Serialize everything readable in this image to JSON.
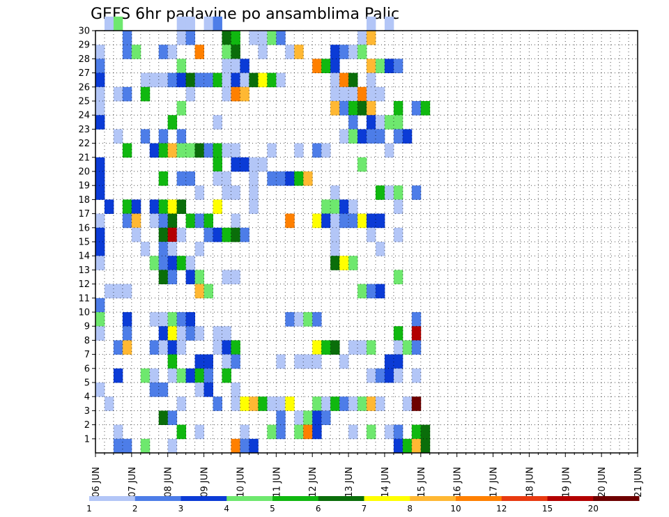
{
  "chart_data": {
    "type": "heatmap",
    "title": "GEFS 6hr padavine po ansamblima Palic",
    "xlabel": "",
    "ylabel": "",
    "x_ticks": [
      "06 JUN",
      "07 JUN",
      "08 JUN",
      "09 JUN",
      "10 JUN",
      "11 JUN",
      "12 JUN",
      "13 JUN",
      "14 JUN",
      "15 JUN",
      "16 JUN",
      "17 JUN",
      "18 JUN",
      "19 JUN",
      "20 JUN",
      "21 JUN"
    ],
    "y_ticks": [
      "1",
      "2",
      "3",
      "4",
      "5",
      "6",
      "7",
      "8",
      "9",
      "10",
      "11",
      "12",
      "13",
      "14",
      "15",
      "16",
      "17",
      "18",
      "19",
      "20",
      "21",
      "22",
      "23",
      "24",
      "25",
      "26",
      "27",
      "28",
      "29",
      "30"
    ],
    "x_range": [
      "06 JUN 00Z",
      "21 JUN 00Z"
    ],
    "time_step_hours": 6,
    "y_range": [
      0,
      30
    ],
    "grid": "dotted",
    "legend": {
      "position": "bottom",
      "labels": [
        "1",
        "2",
        "3",
        "4",
        "5",
        "6",
        "7",
        "8",
        "10",
        "12",
        "15",
        "20"
      ],
      "colors": [
        "#b3c6f7",
        "#4d7de8",
        "#0b3bd6",
        "#6ee86e",
        "#10b810",
        "#0a6e0a",
        "#ffff00",
        "#ffb833",
        "#ff8000",
        "#e83a10",
        "#b30000",
        "#6e0000"
      ]
    },
    "cells": [
      [
        30,
        1,
        0
      ],
      [
        30,
        2,
        3
      ],
      [
        30,
        9,
        0
      ],
      [
        30,
        10,
        0
      ],
      [
        30,
        12,
        0
      ],
      [
        30,
        13,
        1
      ],
      [
        30,
        30,
        0
      ],
      [
        30,
        32,
        0
      ],
      [
        29,
        3,
        1
      ],
      [
        29,
        9,
        0
      ],
      [
        29,
        10,
        1
      ],
      [
        29,
        14,
        5
      ],
      [
        29,
        15,
        4
      ],
      [
        29,
        17,
        0
      ],
      [
        29,
        18,
        0
      ],
      [
        29,
        19,
        3
      ],
      [
        29,
        20,
        1
      ],
      [
        29,
        29,
        0
      ],
      [
        29,
        30,
        7
      ],
      [
        28,
        0,
        0
      ],
      [
        28,
        3,
        1
      ],
      [
        28,
        4,
        3
      ],
      [
        28,
        7,
        1
      ],
      [
        28,
        8,
        0
      ],
      [
        28,
        11,
        8
      ],
      [
        28,
        14,
        3
      ],
      [
        28,
        15,
        5
      ],
      [
        28,
        18,
        0
      ],
      [
        28,
        21,
        0
      ],
      [
        28,
        22,
        7
      ],
      [
        28,
        26,
        2
      ],
      [
        28,
        27,
        1
      ],
      [
        28,
        28,
        0
      ],
      [
        28,
        29,
        3
      ],
      [
        27,
        0,
        1
      ],
      [
        27,
        9,
        3
      ],
      [
        27,
        14,
        0
      ],
      [
        27,
        15,
        0
      ],
      [
        27,
        16,
        2
      ],
      [
        27,
        24,
        8
      ],
      [
        27,
        25,
        4
      ],
      [
        27,
        26,
        2
      ],
      [
        27,
        30,
        7
      ],
      [
        27,
        31,
        3
      ],
      [
        27,
        32,
        2
      ],
      [
        27,
        33,
        1
      ],
      [
        26,
        0,
        2
      ],
      [
        26,
        5,
        0
      ],
      [
        26,
        6,
        0
      ],
      [
        26,
        7,
        0
      ],
      [
        26,
        8,
        1
      ],
      [
        26,
        9,
        2
      ],
      [
        26,
        10,
        5
      ],
      [
        26,
        11,
        1
      ],
      [
        26,
        12,
        1
      ],
      [
        26,
        13,
        4
      ],
      [
        26,
        14,
        0
      ],
      [
        26,
        15,
        2
      ],
      [
        26,
        16,
        0
      ],
      [
        26,
        17,
        5
      ],
      [
        26,
        18,
        6
      ],
      [
        26,
        19,
        4
      ],
      [
        26,
        20,
        0
      ],
      [
        26,
        26,
        0
      ],
      [
        26,
        27,
        8
      ],
      [
        26,
        28,
        5
      ],
      [
        26,
        30,
        0
      ],
      [
        25,
        0,
        0
      ],
      [
        25,
        2,
        0
      ],
      [
        25,
        3,
        1
      ],
      [
        25,
        5,
        4
      ],
      [
        25,
        10,
        0
      ],
      [
        25,
        14,
        0
      ],
      [
        25,
        15,
        8
      ],
      [
        25,
        16,
        7
      ],
      [
        25,
        26,
        0
      ],
      [
        25,
        27,
        0
      ],
      [
        25,
        28,
        0
      ],
      [
        25,
        29,
        8
      ],
      [
        25,
        30,
        0
      ],
      [
        25,
        31,
        0
      ],
      [
        24,
        0,
        0
      ],
      [
        24,
        9,
        3
      ],
      [
        24,
        26,
        7
      ],
      [
        24,
        27,
        1
      ],
      [
        24,
        28,
        4
      ],
      [
        24,
        29,
        5
      ],
      [
        24,
        30,
        7
      ],
      [
        24,
        33,
        4
      ],
      [
        24,
        35,
        1
      ],
      [
        24,
        36,
        4
      ],
      [
        23,
        0,
        2
      ],
      [
        23,
        8,
        4
      ],
      [
        23,
        13,
        0
      ],
      [
        23,
        28,
        1
      ],
      [
        23,
        30,
        2
      ],
      [
        23,
        31,
        0
      ],
      [
        23,
        32,
        3
      ],
      [
        23,
        33,
        3
      ],
      [
        22,
        2,
        0
      ],
      [
        22,
        5,
        1
      ],
      [
        22,
        7,
        1
      ],
      [
        22,
        9,
        1
      ],
      [
        22,
        27,
        0
      ],
      [
        22,
        28,
        3
      ],
      [
        22,
        29,
        2
      ],
      [
        22,
        30,
        1
      ],
      [
        22,
        31,
        1
      ],
      [
        22,
        33,
        1
      ],
      [
        22,
        34,
        2
      ],
      [
        21,
        3,
        4
      ],
      [
        21,
        6,
        2
      ],
      [
        21,
        7,
        4
      ],
      [
        21,
        8,
        7
      ],
      [
        21,
        9,
        3
      ],
      [
        21,
        10,
        3
      ],
      [
        21,
        11,
        5
      ],
      [
        21,
        12,
        1
      ],
      [
        21,
        13,
        4
      ],
      [
        21,
        14,
        0
      ],
      [
        21,
        15,
        0
      ],
      [
        21,
        19,
        0
      ],
      [
        21,
        22,
        0
      ],
      [
        21,
        24,
        1
      ],
      [
        21,
        25,
        0
      ],
      [
        21,
        32,
        0
      ],
      [
        20,
        0,
        2
      ],
      [
        20,
        13,
        4
      ],
      [
        20,
        15,
        2
      ],
      [
        20,
        16,
        2
      ],
      [
        20,
        17,
        0
      ],
      [
        20,
        18,
        0
      ],
      [
        20,
        29,
        3
      ],
      [
        19,
        0,
        2
      ],
      [
        19,
        7,
        4
      ],
      [
        19,
        9,
        1
      ],
      [
        19,
        10,
        1
      ],
      [
        19,
        13,
        0
      ],
      [
        19,
        14,
        0
      ],
      [
        19,
        17,
        0
      ],
      [
        19,
        19,
        1
      ],
      [
        19,
        20,
        1
      ],
      [
        19,
        21,
        2
      ],
      [
        19,
        22,
        4
      ],
      [
        19,
        23,
        7
      ],
      [
        18,
        0,
        2
      ],
      [
        18,
        11,
        0
      ],
      [
        18,
        14,
        0
      ],
      [
        18,
        15,
        0
      ],
      [
        18,
        17,
        0
      ],
      [
        18,
        26,
        0
      ],
      [
        18,
        31,
        4
      ],
      [
        18,
        32,
        0
      ],
      [
        18,
        33,
        3
      ],
      [
        18,
        35,
        1
      ],
      [
        17,
        1,
        2
      ],
      [
        17,
        3,
        4
      ],
      [
        17,
        4,
        2
      ],
      [
        17,
        6,
        2
      ],
      [
        17,
        7,
        4
      ],
      [
        17,
        8,
        6
      ],
      [
        17,
        9,
        5
      ],
      [
        17,
        13,
        6
      ],
      [
        17,
        17,
        0
      ],
      [
        17,
        25,
        3
      ],
      [
        17,
        26,
        3
      ],
      [
        17,
        27,
        2
      ],
      [
        17,
        28,
        0
      ],
      [
        17,
        33,
        0
      ],
      [
        16,
        0,
        0
      ],
      [
        16,
        3,
        1
      ],
      [
        16,
        4,
        7
      ],
      [
        16,
        6,
        0
      ],
      [
        16,
        7,
        1
      ],
      [
        16,
        8,
        5
      ],
      [
        16,
        10,
        4
      ],
      [
        16,
        11,
        1
      ],
      [
        16,
        12,
        4
      ],
      [
        16,
        15,
        0
      ],
      [
        16,
        21,
        8
      ],
      [
        16,
        24,
        6
      ],
      [
        16,
        25,
        2
      ],
      [
        16,
        26,
        0
      ],
      [
        16,
        27,
        1
      ],
      [
        16,
        28,
        1
      ],
      [
        16,
        29,
        6
      ],
      [
        16,
        30,
        2
      ],
      [
        16,
        31,
        2
      ],
      [
        15,
        0,
        2
      ],
      [
        15,
        4,
        0
      ],
      [
        15,
        7,
        5
      ],
      [
        15,
        8,
        10
      ],
      [
        15,
        9,
        0
      ],
      [
        15,
        12,
        1
      ],
      [
        15,
        13,
        2
      ],
      [
        15,
        14,
        4
      ],
      [
        15,
        15,
        5
      ],
      [
        15,
        16,
        1
      ],
      [
        15,
        26,
        0
      ],
      [
        15,
        30,
        0
      ],
      [
        15,
        33,
        0
      ],
      [
        14,
        0,
        2
      ],
      [
        14,
        5,
        0
      ],
      [
        14,
        7,
        1
      ],
      [
        14,
        8,
        0
      ],
      [
        14,
        11,
        0
      ],
      [
        14,
        26,
        0
      ],
      [
        14,
        31,
        0
      ],
      [
        13,
        0,
        0
      ],
      [
        13,
        6,
        3
      ],
      [
        13,
        7,
        1
      ],
      [
        13,
        8,
        2
      ],
      [
        13,
        9,
        4
      ],
      [
        13,
        10,
        0
      ],
      [
        13,
        26,
        5
      ],
      [
        13,
        27,
        6
      ],
      [
        13,
        28,
        3
      ],
      [
        12,
        7,
        5
      ],
      [
        12,
        8,
        1
      ],
      [
        12,
        10,
        2
      ],
      [
        12,
        11,
        3
      ],
      [
        12,
        14,
        0
      ],
      [
        12,
        15,
        0
      ],
      [
        12,
        33,
        3
      ],
      [
        11,
        1,
        0
      ],
      [
        11,
        2,
        0
      ],
      [
        11,
        3,
        0
      ],
      [
        11,
        11,
        7
      ],
      [
        11,
        12,
        3
      ],
      [
        11,
        29,
        3
      ],
      [
        11,
        30,
        1
      ],
      [
        11,
        31,
        2
      ],
      [
        10,
        0,
        1
      ],
      [
        9,
        0,
        3
      ],
      [
        9,
        3,
        2
      ],
      [
        9,
        6,
        0
      ],
      [
        9,
        7,
        0
      ],
      [
        9,
        8,
        3
      ],
      [
        9,
        9,
        1
      ],
      [
        9,
        10,
        2
      ],
      [
        9,
        21,
        1
      ],
      [
        9,
        22,
        0
      ],
      [
        9,
        23,
        3
      ],
      [
        9,
        24,
        1
      ],
      [
        9,
        35,
        1
      ],
      [
        8,
        0,
        0
      ],
      [
        8,
        3,
        1
      ],
      [
        8,
        7,
        2
      ],
      [
        8,
        8,
        6
      ],
      [
        8,
        9,
        0
      ],
      [
        8,
        10,
        1
      ],
      [
        8,
        11,
        0
      ],
      [
        8,
        13,
        0
      ],
      [
        8,
        14,
        0
      ],
      [
        8,
        33,
        4
      ],
      [
        8,
        35,
        10
      ],
      [
        7,
        2,
        1
      ],
      [
        7,
        3,
        7
      ],
      [
        7,
        6,
        1
      ],
      [
        7,
        7,
        0
      ],
      [
        7,
        8,
        2
      ],
      [
        7,
        9,
        0
      ],
      [
        7,
        13,
        0
      ],
      [
        7,
        14,
        2
      ],
      [
        7,
        15,
        4
      ],
      [
        7,
        24,
        6
      ],
      [
        7,
        25,
        4
      ],
      [
        7,
        26,
        5
      ],
      [
        7,
        28,
        0
      ],
      [
        7,
        29,
        0
      ],
      [
        7,
        30,
        3
      ],
      [
        7,
        33,
        0
      ],
      [
        7,
        34,
        3
      ],
      [
        7,
        35,
        1
      ],
      [
        6,
        8,
        4
      ],
      [
        6,
        11,
        2
      ],
      [
        6,
        12,
        2
      ],
      [
        6,
        14,
        0
      ],
      [
        6,
        15,
        1
      ],
      [
        6,
        20,
        0
      ],
      [
        6,
        22,
        0
      ],
      [
        6,
        23,
        0
      ],
      [
        6,
        24,
        0
      ],
      [
        6,
        27,
        0
      ],
      [
        6,
        32,
        2
      ],
      [
        6,
        33,
        2
      ],
      [
        5,
        2,
        2
      ],
      [
        5,
        5,
        3
      ],
      [
        5,
        6,
        0
      ],
      [
        5,
        8,
        0
      ],
      [
        5,
        9,
        3
      ],
      [
        5,
        10,
        2
      ],
      [
        5,
        11,
        4
      ],
      [
        5,
        12,
        1
      ],
      [
        5,
        14,
        4
      ],
      [
        5,
        30,
        0
      ],
      [
        5,
        31,
        1
      ],
      [
        5,
        32,
        2
      ],
      [
        5,
        33,
        0
      ],
      [
        5,
        35,
        0
      ],
      [
        4,
        0,
        0
      ],
      [
        4,
        6,
        1
      ],
      [
        4,
        7,
        1
      ],
      [
        4,
        11,
        0
      ],
      [
        4,
        12,
        2
      ],
      [
        4,
        15,
        0
      ],
      [
        3,
        1,
        0
      ],
      [
        3,
        9,
        0
      ],
      [
        3,
        13,
        1
      ],
      [
        3,
        15,
        0
      ],
      [
        3,
        16,
        6
      ],
      [
        3,
        17,
        7
      ],
      [
        3,
        18,
        4
      ],
      [
        3,
        19,
        0
      ],
      [
        3,
        20,
        0
      ],
      [
        3,
        21,
        6
      ],
      [
        3,
        24,
        3
      ],
      [
        3,
        25,
        0
      ],
      [
        3,
        26,
        4
      ],
      [
        3,
        27,
        1
      ],
      [
        3,
        28,
        0
      ],
      [
        3,
        29,
        3
      ],
      [
        3,
        30,
        7
      ],
      [
        3,
        31,
        0
      ],
      [
        3,
        34,
        0
      ],
      [
        3,
        35,
        11
      ],
      [
        2,
        7,
        5
      ],
      [
        2,
        8,
        1
      ],
      [
        2,
        20,
        1
      ],
      [
        2,
        22,
        0
      ],
      [
        2,
        23,
        3
      ],
      [
        2,
        24,
        2
      ],
      [
        2,
        25,
        1
      ],
      [
        1,
        2,
        0
      ],
      [
        1,
        9,
        4
      ],
      [
        1,
        11,
        0
      ],
      [
        1,
        16,
        0
      ],
      [
        1,
        19,
        3
      ],
      [
        1,
        20,
        1
      ],
      [
        1,
        22,
        3
      ],
      [
        1,
        23,
        8
      ],
      [
        1,
        24,
        2
      ],
      [
        1,
        28,
        0
      ],
      [
        1,
        30,
        3
      ],
      [
        1,
        32,
        0
      ],
      [
        1,
        33,
        1
      ],
      [
        1,
        35,
        4
      ],
      [
        1,
        36,
        5
      ],
      [
        0,
        2,
        1
      ],
      [
        0,
        3,
        1
      ],
      [
        0,
        5,
        3
      ],
      [
        0,
        8,
        0
      ],
      [
        0,
        15,
        8
      ],
      [
        0,
        16,
        1
      ],
      [
        0,
        17,
        2
      ],
      [
        0,
        33,
        2
      ],
      [
        0,
        34,
        4
      ],
      [
        0,
        35,
        7
      ],
      [
        0,
        36,
        5
      ]
    ]
  }
}
